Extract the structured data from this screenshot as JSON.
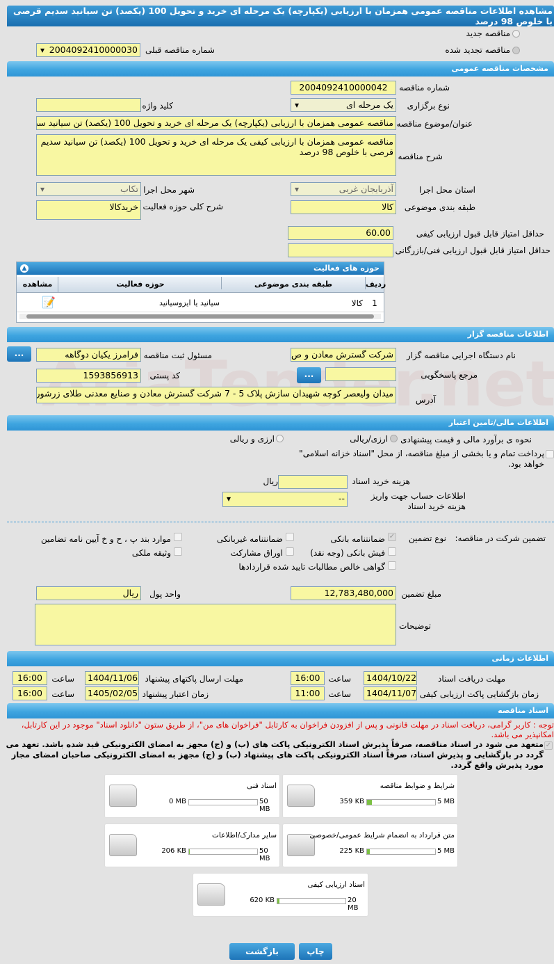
{
  "title": "مشاهده اطلاعات مناقصه عمومی همزمان با ارزیابی (یکپارچه) یک مرحله ای خرید و تحویل 100 (یکصد) تن سیانید سدیم قرصی با خلوص 98 درصد",
  "watermark": "AriaTender.net",
  "top": {
    "new_label": "مناقصه جدید",
    "renewed_label": "مناقصه تجدید شده",
    "prev_label": "شماره مناقصه قبلی",
    "prev_value": "2004092410000030"
  },
  "general": {
    "header": "مشخصات مناقصه عمومی",
    "number_label": "شماره مناقصه",
    "number": "2004092410000042",
    "type_label": "نوع برگزاری",
    "type": "یک مرحله ای",
    "keyword_label": "کلید واژه",
    "keyword": "",
    "subject_label": "عنوان/موضوع مناقصه",
    "subject": "مناقصه عمومی همزمان با ارزیابی (یکپارچه) یک مرحله ای خرید و تحویل 100 (یکصد) تن سیانید سدیم قرصی با خلوص 98 درصد",
    "desc_label": "شرح مناقصه",
    "desc": "مناقصه عمومی همزمان با ارزیابی کیفی یک مرحله ای خرید و تحویل 100 (یکصد) تن سیانید سدیم قرصی با خلوص 98 درصد",
    "province_label": "استان محل اجرا",
    "province": "آذربایجان غربی",
    "city_label": "شهر محل اجرا",
    "city": "تکاب",
    "category_label": "طبقه بندی موضوعی",
    "category": "کالا",
    "scope_label": "شرح کلی حوزه فعالیت",
    "scope": "خریدکالا",
    "min_quality_label": "حداقل امتیاز قابل قبول ارزیابی کیفی",
    "min_quality": "60.00",
    "min_tech_label": "حداقل امتیاز قابل قبول ارزیابی فنی/بازرگانی",
    "min_tech": ""
  },
  "activities": {
    "header": "حوزه های فعالیت",
    "columns": [
      "ردیف",
      "طبقه بندی موضوعی",
      "حوزه فعالیت",
      "مشاهده"
    ],
    "rows": [
      {
        "idx": "1",
        "category": "کالا",
        "field": "سیانید یا ایزوسیانید"
      }
    ]
  },
  "organizer": {
    "header": "اطلاعات مناقصه گزار",
    "org_label": "نام دستگاه اجرایی مناقصه گزار",
    "org": "شرکت گسترش معادن و ص",
    "resp_label": "مسئول ثبت مناقصه",
    "resp": "فرامرز یکیان دوگاهه",
    "ref_label": "مرجع پاسخگویی",
    "ref": "",
    "postal_label": "کد پستی",
    "postal": "1593856913",
    "address_label": "آدرس",
    "address": "میدان ولیعصر کوچه شهیدان سازش پلاک 5 - 7 شرکت گسترش معادن و صنایع معدنی  طلای زرشوران",
    "dots": "..."
  },
  "finance": {
    "header": "اطلاعات مالی/تامین اعتبار",
    "method_label": "نحوه ی برآورد مالی و قیمت پیشنهادی",
    "opt1": "ارزی/ریالی",
    "opt2": "ارزی و ریالی",
    "treasury": "پرداخت تمام و یا بخشی از مبلغ مناقصه، از محل \"اسناد خزانه اسلامی\" خواهد بود.",
    "doc_fee_label": "هزینه خرید اسناد",
    "doc_fee": "",
    "rial": "ریال",
    "account_label": "اطلاعات حساب جهت واریز هزینه خرید اسناد",
    "account": "--",
    "guarantee_label": "تضمین شرکت در مناقصه:",
    "gtype_label": "نوع تضمین",
    "guarantees": [
      {
        "label": "ضمانتنامه بانکی",
        "checked": true
      },
      {
        "label": "ضمانتنامه غیربانکی",
        "checked": false
      },
      {
        "label": "موارد بند پ ، ح و خ آیین نامه تضامین",
        "checked": false
      },
      {
        "label": "فیش بانکی (وجه نقد)",
        "checked": false
      },
      {
        "label": "اوراق مشارکت",
        "checked": false
      },
      {
        "label": "وثیقه ملکی",
        "checked": false
      },
      {
        "label": "گواهی خالص مطالبات تایید شده قراردادها",
        "checked": false
      }
    ],
    "amount_label": "مبلغ تضمین",
    "amount": "12,783,480,000",
    "currency_label": "واحد پول",
    "currency": "ریال",
    "notes_label": "توضیحات",
    "notes": ""
  },
  "timing": {
    "header": "اطلاعات زمانی",
    "hour_label": "ساعت",
    "doc_deadline_label": "مهلت دریافت اسناد",
    "doc_deadline": "1404/10/22",
    "doc_deadline_time": "16:00",
    "send_deadline_label": "مهلت ارسال پاکتهای پیشنهاد",
    "send_deadline": "1404/11/06",
    "send_deadline_time": "16:00",
    "open_label": "زمان بازگشایی پاکت ارزیابی کیفی",
    "open": "1404/11/07",
    "open_time": "11:00",
    "validity_label": "زمان اعتبار پیشنهاد",
    "validity": "1405/02/05",
    "validity_time": "16:00"
  },
  "docs": {
    "header": "اسناد مناقصه",
    "notice": "توجه : کاربر گرامی، دریافت اسناد در مهلت قانونی و پس از افزودن فراخوان به کارتابل \"فراخوان های من\"، از طریق ستون \"دانلود اسناد\" موجود در این کارتابل، امکانپذیر می باشد.",
    "commitment": "متعهد می شود در اسناد مناقصه، صرفاً پذیرش اسناد الکترونیکی پاکت های (ب) و (ج) مجهز به امضای الکترونیکی قید شده باشد. تعهد می گردد در بازگشایی و پذیرش اسناد، صرفاً اسناد الکترونیکی پاکت های پیشنهاد (ب) و (ج) مجهز به امضای الکترونیکی صاحبان امضای مجاز مورد پذیرش واقع گردد.",
    "items": [
      {
        "name": "شرایط و ضوابط مناقصه",
        "size": "359 KB",
        "max": "5 MB",
        "percent": 7
      },
      {
        "name": "اسناد فنی",
        "size": "0 MB",
        "max": "50 MB",
        "percent": 0
      },
      {
        "name": "متن قرارداد به انضمام شرایط عمومی/خصوصی",
        "size": "225 KB",
        "max": "5 MB",
        "percent": 4.5
      },
      {
        "name": "سایر مدارک/اطلاعات",
        "size": "206 KB",
        "max": "50 MB",
        "percent": 0.4
      },
      {
        "name": "اسناد ارزیابی کیفی",
        "size": "620 KB",
        "max": "20 MB",
        "percent": 3
      }
    ]
  },
  "buttons": {
    "back": "بازگشت",
    "print": "چاپ"
  },
  "colors": {
    "header": "#3fa5e0",
    "field": "#f8f7a2",
    "notice": "#e00000",
    "progress": "#7bc043"
  }
}
